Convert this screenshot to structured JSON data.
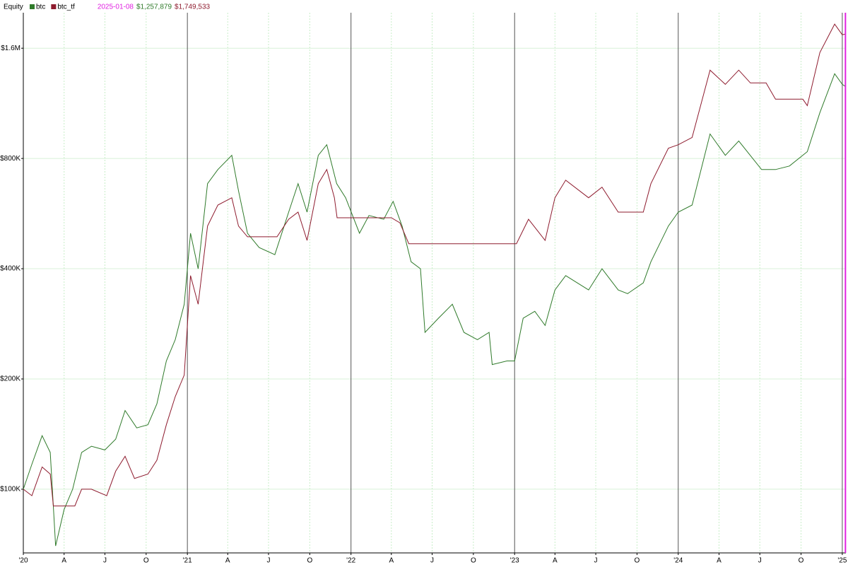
{
  "chart_data": {
    "type": "line",
    "title": "Equity",
    "log_scale": true,
    "grid": true,
    "cursor_date": "2025-01-08",
    "cursor_color": "#e020e0",
    "xlim": [
      "2020-01-01",
      "2025-01-09"
    ],
    "xticks": [
      {
        "value": "2020-01-01",
        "label": "'20"
      },
      {
        "value": "2020-04-01",
        "label": "A"
      },
      {
        "value": "2020-07-01",
        "label": "J"
      },
      {
        "value": "2020-10-01",
        "label": "O"
      },
      {
        "value": "2021-01-01",
        "label": "'21"
      },
      {
        "value": "2021-04-01",
        "label": "A"
      },
      {
        "value": "2021-07-01",
        "label": "J"
      },
      {
        "value": "2021-10-01",
        "label": "O"
      },
      {
        "value": "2022-01-01",
        "label": "'22"
      },
      {
        "value": "2022-04-01",
        "label": "A"
      },
      {
        "value": "2022-07-01",
        "label": "J"
      },
      {
        "value": "2022-10-01",
        "label": "O"
      },
      {
        "value": "2023-01-01",
        "label": "'23"
      },
      {
        "value": "2023-04-01",
        "label": "A"
      },
      {
        "value": "2023-07-01",
        "label": "J"
      },
      {
        "value": "2023-10-01",
        "label": "O"
      },
      {
        "value": "2024-01-01",
        "label": "'24"
      },
      {
        "value": "2024-04-01",
        "label": "A"
      },
      {
        "value": "2024-07-01",
        "label": "J"
      },
      {
        "value": "2024-10-01",
        "label": "O"
      },
      {
        "value": "2025-01-01",
        "label": "'25"
      }
    ],
    "ylim": [
      67000,
      2000000
    ],
    "yticks": [
      {
        "value": 100000,
        "label": "$100K"
      },
      {
        "value": 200000,
        "label": "$200K"
      },
      {
        "value": 400000,
        "label": "$400K"
      },
      {
        "value": 800000,
        "label": "$800K"
      },
      {
        "value": 1600000,
        "label": "$1.6M"
      }
    ],
    "series": [
      {
        "name": "btc",
        "color": "#2f7a2a",
        "cursor_label": "$1,257,879",
        "x": [
          "2020-01-01",
          "2020-01-20",
          "2020-02-12",
          "2020-03-01",
          "2020-03-13",
          "2020-04-01",
          "2020-04-20",
          "2020-05-10",
          "2020-06-01",
          "2020-07-01",
          "2020-07-25",
          "2020-08-15",
          "2020-09-10",
          "2020-10-05",
          "2020-10-25",
          "2020-11-15",
          "2020-12-05",
          "2020-12-25",
          "2021-01-08",
          "2021-01-25",
          "2021-02-15",
          "2021-03-10",
          "2021-04-10",
          "2021-04-25",
          "2021-05-15",
          "2021-06-10",
          "2021-07-15",
          "2021-08-15",
          "2021-09-05",
          "2021-09-25",
          "2021-10-20",
          "2021-11-08",
          "2021-11-30",
          "2021-12-20",
          "2022-01-20",
          "2022-02-10",
          "2022-03-15",
          "2022-04-05",
          "2022-04-25",
          "2022-05-15",
          "2022-06-05",
          "2022-06-15",
          "2022-07-15",
          "2022-08-15",
          "2022-09-10",
          "2022-10-10",
          "2022-11-05",
          "2022-11-12",
          "2022-12-15",
          "2023-01-01",
          "2023-01-20",
          "2023-02-15",
          "2023-03-10",
          "2023-04-01",
          "2023-04-25",
          "2023-06-15",
          "2023-07-15",
          "2023-08-20",
          "2023-09-10",
          "2023-10-15",
          "2023-11-01",
          "2023-12-10",
          "2024-01-01",
          "2024-02-01",
          "2024-03-12",
          "2024-04-15",
          "2024-05-15",
          "2024-07-05",
          "2024-08-05",
          "2024-09-05",
          "2024-10-15",
          "2024-11-12",
          "2024-12-15",
          "2025-01-01",
          "2025-01-08"
        ],
        "values": [
          100000,
          117000,
          140000,
          126000,
          70000,
          88000,
          100000,
          126000,
          131000,
          128000,
          137000,
          164000,
          147000,
          150000,
          171000,
          224000,
          256000,
          320000,
          500000,
          400000,
          683000,
          746000,
          816000,
          653000,
          500000,
          457000,
          437000,
          571000,
          683000,
          571000,
          816000,
          872000,
          683000,
          625000,
          500000,
          559000,
          546000,
          611000,
          523000,
          418000,
          400000,
          268000,
          293000,
          320000,
          268000,
          256000,
          268000,
          219000,
          224000,
          224000,
          293000,
          306000,
          280000,
          350000,
          383000,
          350000,
          400000,
          350000,
          342000,
          366000,
          418000,
          523000,
          571000,
          597000,
          933000,
          816000,
          893000,
          746000,
          746000,
          763000,
          835000,
          1067000,
          1363000,
          1275000,
          1257879
        ]
      },
      {
        "name": "btc_tf",
        "color": "#8e1b2e",
        "cursor_label": "$1,749,533",
        "x": [
          "2020-01-01",
          "2020-01-20",
          "2020-02-12",
          "2020-03-01",
          "2020-03-08",
          "2020-04-25",
          "2020-05-10",
          "2020-06-01",
          "2020-07-05",
          "2020-07-25",
          "2020-08-15",
          "2020-09-05",
          "2020-10-05",
          "2020-10-25",
          "2020-11-15",
          "2020-12-05",
          "2020-12-25",
          "2021-01-08",
          "2021-01-25",
          "2021-02-15",
          "2021-03-10",
          "2021-04-10",
          "2021-04-25",
          "2021-05-15",
          "2021-07-20",
          "2021-08-15",
          "2021-09-05",
          "2021-09-25",
          "2021-10-20",
          "2021-11-08",
          "2021-11-25",
          "2021-12-01",
          "2022-04-01",
          "2022-04-20",
          "2022-05-10",
          "2023-01-05",
          "2023-02-01",
          "2023-03-10",
          "2023-04-01",
          "2023-04-25",
          "2023-06-15",
          "2023-07-15",
          "2023-08-20",
          "2023-10-15",
          "2023-11-01",
          "2023-12-10",
          "2024-01-01",
          "2024-02-01",
          "2024-03-12",
          "2024-04-15",
          "2024-05-15",
          "2024-06-10",
          "2024-07-15",
          "2024-08-05",
          "2024-10-05",
          "2024-10-15",
          "2024-11-12",
          "2024-12-15",
          "2025-01-01",
          "2025-01-08"
        ],
        "values": [
          100000,
          96000,
          115000,
          110000,
          90000,
          90000,
          100000,
          100000,
          96000,
          112000,
          123000,
          107000,
          110000,
          120000,
          150000,
          179000,
          205000,
          383000,
          320000,
          523000,
          597000,
          625000,
          523000,
          489000,
          489000,
          546000,
          571000,
          478000,
          683000,
          746000,
          625000,
          551000,
          551000,
          534000,
          468000,
          468000,
          546000,
          478000,
          625000,
          698000,
          625000,
          668000,
          571000,
          571000,
          683000,
          853000,
          872000,
          913000,
          1394000,
          1275000,
          1394000,
          1286000,
          1286000,
          1161000,
          1161000,
          1115000,
          1557000,
          1862000,
          1741000,
          1749533
        ]
      }
    ]
  }
}
